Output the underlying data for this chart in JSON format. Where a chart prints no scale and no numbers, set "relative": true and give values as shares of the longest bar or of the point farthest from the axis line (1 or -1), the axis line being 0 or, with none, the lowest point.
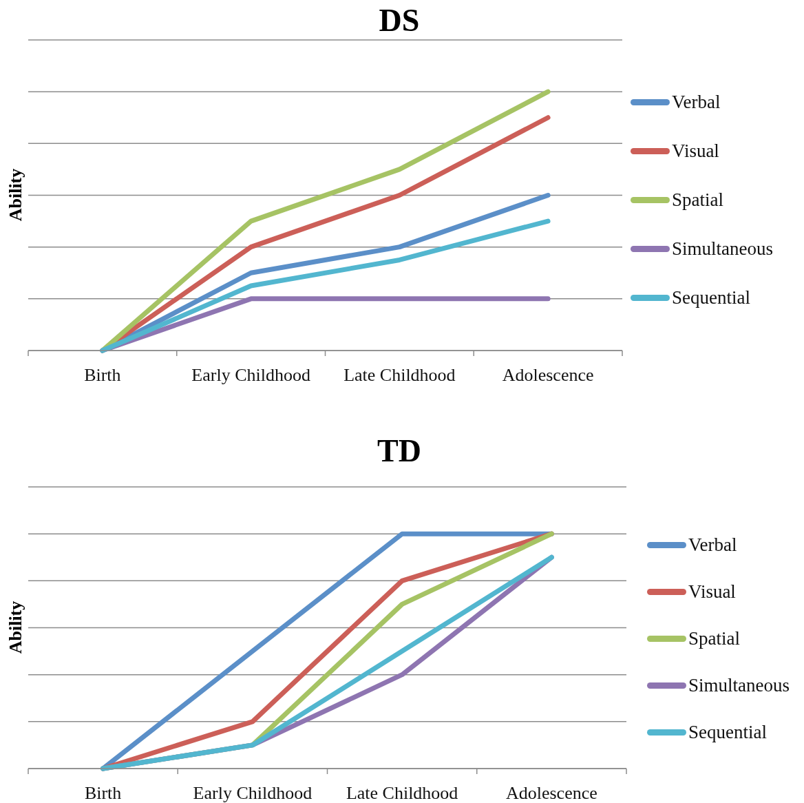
{
  "chart_data": [
    {
      "type": "line",
      "title": "DS",
      "ylabel": "Ability",
      "categories": [
        "Birth",
        "Early Childhood",
        "Late Childhood",
        "Adolescence"
      ],
      "relative": true,
      "grid": "y",
      "legend": "right",
      "series": [
        {
          "name": "Verbal",
          "color": "#5b8fc8",
          "values": [
            0,
            0.3,
            0.4,
            0.6
          ]
        },
        {
          "name": "Visual",
          "color": "#cc5f58",
          "values": [
            0,
            0.4,
            0.6,
            0.9
          ]
        },
        {
          "name": "Spatial",
          "color": "#a6c364",
          "values": [
            0,
            0.5,
            0.7,
            1
          ]
        },
        {
          "name": "Simultaneous",
          "color": "#8e75b1",
          "values": [
            0,
            0.2,
            0.2,
            0.2
          ]
        },
        {
          "name": "Sequential",
          "color": "#52b6cf",
          "values": [
            0,
            0.25,
            0.35,
            0.5
          ]
        }
      ]
    },
    {
      "type": "line",
      "title": "TD",
      "ylabel": "Ability",
      "categories": [
        "Birth",
        "Early Childhood",
        "Late Childhood",
        "Adolescence"
      ],
      "relative": true,
      "grid": "y",
      "legend": "right",
      "series": [
        {
          "name": "Verbal",
          "color": "#5b8fc8",
          "values": [
            0,
            0.5,
            1,
            1
          ]
        },
        {
          "name": "Visual",
          "color": "#cc5f58",
          "values": [
            0,
            0.2,
            0.8,
            1
          ]
        },
        {
          "name": "Spatial",
          "color": "#a6c364",
          "values": [
            0,
            0.1,
            0.7,
            1
          ]
        },
        {
          "name": "Simultaneous",
          "color": "#8e75b1",
          "values": [
            0,
            0.1,
            0.4,
            0.9
          ]
        },
        {
          "name": "Sequential",
          "color": "#52b6cf",
          "values": [
            0,
            0.1,
            0.5,
            0.9
          ]
        }
      ]
    }
  ]
}
